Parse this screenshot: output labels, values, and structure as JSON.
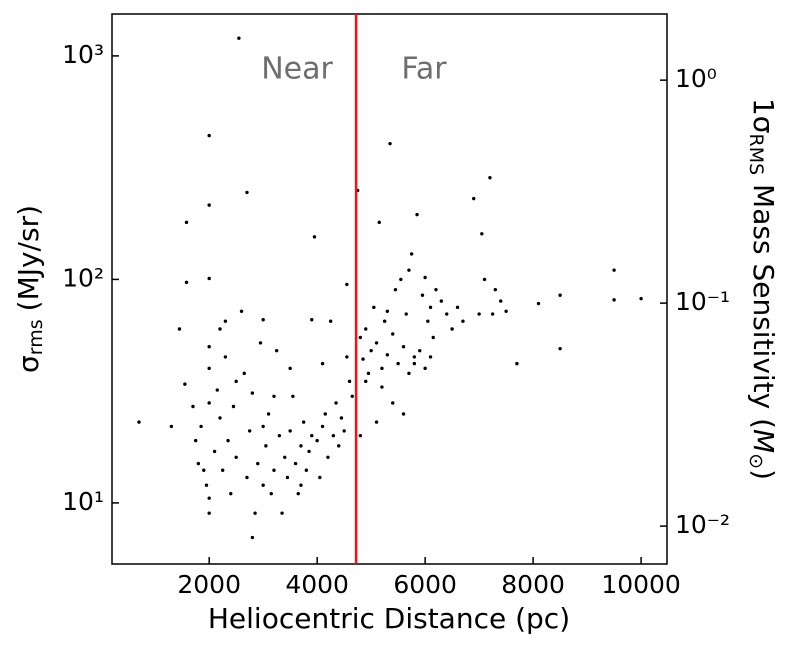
{
  "chart_data": {
    "type": "scatter",
    "xlabel": "Heliocentric Distance (pc)",
    "ylabel": {
      "symbol": "σ",
      "sub": "rms",
      "unit": "(MJy/sr)"
    },
    "y2label": {
      "prefix": "1σ",
      "sub": "RMS",
      "text": " Mass Sensitivity (",
      "symbol": "M",
      "symsub": "⊙",
      "close": ")"
    },
    "xlim": [
      200,
      10480
    ],
    "xticks": [
      2000,
      4000,
      6000,
      8000,
      10000
    ],
    "ylim": [
      5.33,
      1540
    ],
    "ylog": true,
    "yticks": [
      {
        "value": 10,
        "label": "10¹"
      },
      {
        "value": 100,
        "label": "10²"
      },
      {
        "value": 1000,
        "label": "10³"
      }
    ],
    "y2lim": [
      0.00676,
      1.98
    ],
    "y2log": true,
    "y2ticks": [
      {
        "value": 0.01,
        "label": "10⁻²"
      },
      {
        "value": 0.1,
        "label": "10⁻¹"
      },
      {
        "value": 1,
        "label": "10⁰"
      }
    ],
    "vline": {
      "x": 4720,
      "color": "#e8161b"
    },
    "annotations": [
      "Near",
      "Far"
    ],
    "series": [
      {
        "color": "#000000",
        "x": [
          700,
          1300,
          1450,
          1550,
          1580,
          1580,
          1700,
          1750,
          1800,
          1850,
          1900,
          1950,
          2000,
          2000,
          2000,
          2000,
          2000,
          2000,
          2000,
          2000,
          2100,
          2150,
          2200,
          2250,
          2300,
          2300,
          2350,
          2400,
          2450,
          2500,
          2550,
          2600,
          2650,
          2700,
          2700,
          2750,
          2800,
          2800,
          2850,
          2900,
          2950,
          3000,
          3000,
          3050,
          3100,
          3150,
          3200,
          3250,
          3300,
          3350,
          3400,
          3450,
          3500,
          3550,
          3600,
          3650,
          3700,
          3750,
          3800,
          3850,
          3900,
          3900,
          3950,
          4000,
          4050,
          4100,
          4150,
          4200,
          4250,
          4300,
          4350,
          4400,
          4450,
          4500,
          4550,
          4600,
          4650,
          4550,
          3500,
          2200,
          2500,
          3000,
          3200,
          3700,
          4100,
          4750,
          4800,
          4850,
          4900,
          4950,
          5000,
          5050,
          5100,
          5150,
          5200,
          5250,
          5300,
          5350,
          5400,
          5450,
          5500,
          5550,
          5600,
          5650,
          5700,
          5750,
          5800,
          5850,
          5900,
          5950,
          6000,
          6050,
          6100,
          6150,
          6200,
          6300,
          6400,
          6500,
          6600,
          6700,
          6900,
          7000,
          7050,
          7100,
          7200,
          7250,
          7300,
          7400,
          7500,
          7700,
          8100,
          8500,
          8500,
          9500,
          9500,
          10000,
          5200,
          4900,
          5400,
          5600,
          5800,
          6100,
          4800,
          5100,
          5300,
          5700,
          6000
        ],
        "y": [
          23,
          22,
          60,
          34,
          180,
          97,
          27,
          19,
          15,
          22,
          14,
          12,
          9,
          10.5,
          440,
          215,
          101,
          50,
          40,
          28,
          17,
          32,
          24,
          14,
          45,
          65,
          19,
          11,
          27,
          16,
          1200,
          72,
          38,
          245,
          13,
          21,
          7,
          31,
          9,
          15,
          52,
          12,
          66,
          18,
          25,
          11,
          14,
          48,
          20,
          9,
          16,
          13,
          21,
          30,
          15,
          11,
          18,
          23,
          14,
          17,
          66,
          20,
          155,
          19,
          13,
          22,
          25,
          16,
          65,
          20,
          28,
          18,
          24,
          21,
          95,
          35,
          30,
          45,
          40,
          60,
          35,
          22,
          30,
          12,
          42,
          250,
          55,
          44,
          60,
          38,
          48,
          75,
          52,
          180,
          40,
          65,
          46,
          405,
          57,
          90,
          42,
          100,
          50,
          70,
          38,
          130,
          45,
          195,
          48,
          85,
          40,
          65,
          75,
          55,
          90,
          80,
          70,
          60,
          75,
          65,
          230,
          70,
          160,
          100,
          285,
          70,
          90,
          80,
          72,
          42,
          78,
          85,
          49,
          110,
          81,
          82,
          33,
          35,
          28,
          25,
          42,
          45,
          20,
          23,
          72,
          110,
          102
        ]
      }
    ]
  }
}
